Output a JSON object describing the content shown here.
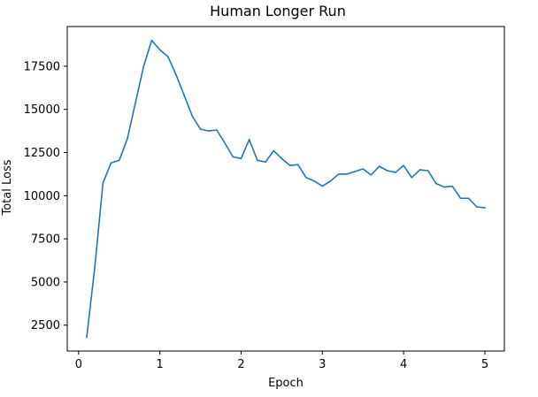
{
  "chart_data": {
    "type": "line",
    "title": "Human Longer Run",
    "xlabel": "Epoch",
    "ylabel": "Total Loss",
    "xlim": [
      -0.14,
      5.24
    ],
    "ylim": [
      1000,
      19800
    ],
    "xticks": [
      0,
      1,
      2,
      3,
      4,
      5
    ],
    "xtick_labels": [
      "0",
      "1",
      "2",
      "3",
      "4",
      "5"
    ],
    "yticks": [
      2500,
      5000,
      7500,
      10000,
      12500,
      15000,
      17500
    ],
    "ytick_labels": [
      "2500",
      "5000",
      "7500",
      "10000",
      "12500",
      "15000",
      "17500"
    ],
    "grid": false,
    "legend": "none",
    "colors": {
      "line": "#1f77b4",
      "axis": "#000000",
      "background": "#ffffff"
    },
    "series": [
      {
        "x": [
          0.1,
          0.2,
          0.3,
          0.4,
          0.5,
          0.6,
          0.7,
          0.8,
          0.9,
          1.0,
          1.1,
          1.2,
          1.3,
          1.4,
          1.5,
          1.6,
          1.7,
          1.8,
          1.9,
          2.0,
          2.1,
          2.2,
          2.3,
          2.4,
          2.5,
          2.6,
          2.7,
          2.8,
          2.9,
          3.0,
          3.1,
          3.2,
          3.3,
          3.4,
          3.5,
          3.6,
          3.7,
          3.8,
          3.9,
          4.0,
          4.1,
          4.2,
          4.3,
          4.4,
          4.5,
          4.6,
          4.7,
          4.8,
          4.9,
          5.0
        ],
        "values": [
          1800,
          5900,
          10750,
          11900,
          12050,
          13300,
          15400,
          17500,
          19000,
          18450,
          18050,
          17000,
          15800,
          14600,
          13850,
          13750,
          13800,
          13050,
          12250,
          12150,
          13250,
          12050,
          11950,
          12600,
          12150,
          11750,
          11800,
          11050,
          10850,
          10550,
          10850,
          11250,
          11250,
          11400,
          11550,
          11200,
          11700,
          11450,
          11350,
          11750,
          11050,
          11500,
          11450,
          10700,
          10500,
          10550,
          9850,
          9850,
          9350,
          9300
        ]
      }
    ]
  }
}
